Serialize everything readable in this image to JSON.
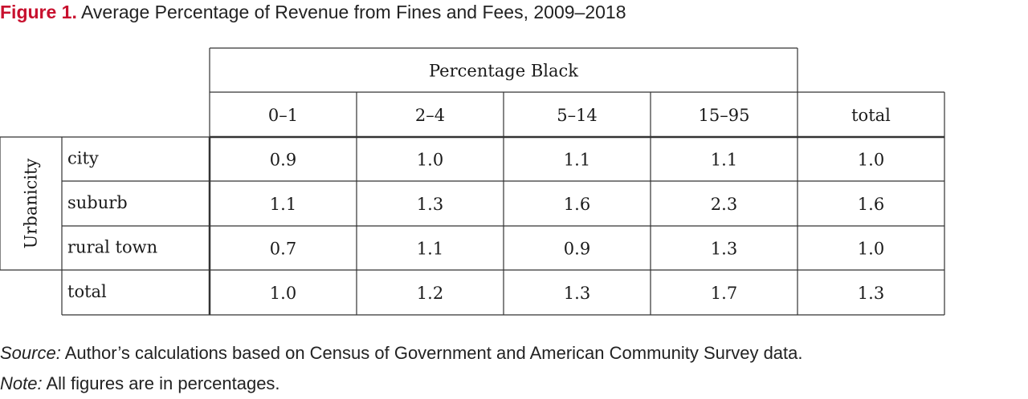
{
  "figure": {
    "label": "Figure 1.",
    "title": "Average Percentage of Revenue from Fines and Fees, 2009–2018"
  },
  "chart_data": {
    "type": "table",
    "column_group_header": "Percentage Black",
    "row_group_header": "Urbanicity",
    "columns": [
      "0–1",
      "2–4",
      "5–14",
      "15–95",
      "total"
    ],
    "rows": [
      {
        "label": "city",
        "values": [
          "0.9",
          "1.0",
          "1.1",
          "1.1",
          "1.0"
        ]
      },
      {
        "label": "suburb",
        "values": [
          "1.1",
          "1.3",
          "1.6",
          "2.3",
          "1.6"
        ]
      },
      {
        "label": "rural town",
        "values": [
          "0.7",
          "1.1",
          "0.9",
          "1.3",
          "1.0"
        ]
      },
      {
        "label": "total",
        "values": [
          "1.0",
          "1.2",
          "1.3",
          "1.7",
          "1.3"
        ]
      }
    ]
  },
  "footer": {
    "source_label": "Source:",
    "source_text": " Author’s calculations based on Census of Government and American Community Survey data.",
    "note_label": "Note:",
    "note_text": " All figures are in percentages."
  },
  "colors": {
    "accent": "#c8102e",
    "line": "#333333",
    "text": "#1a1a1a"
  }
}
